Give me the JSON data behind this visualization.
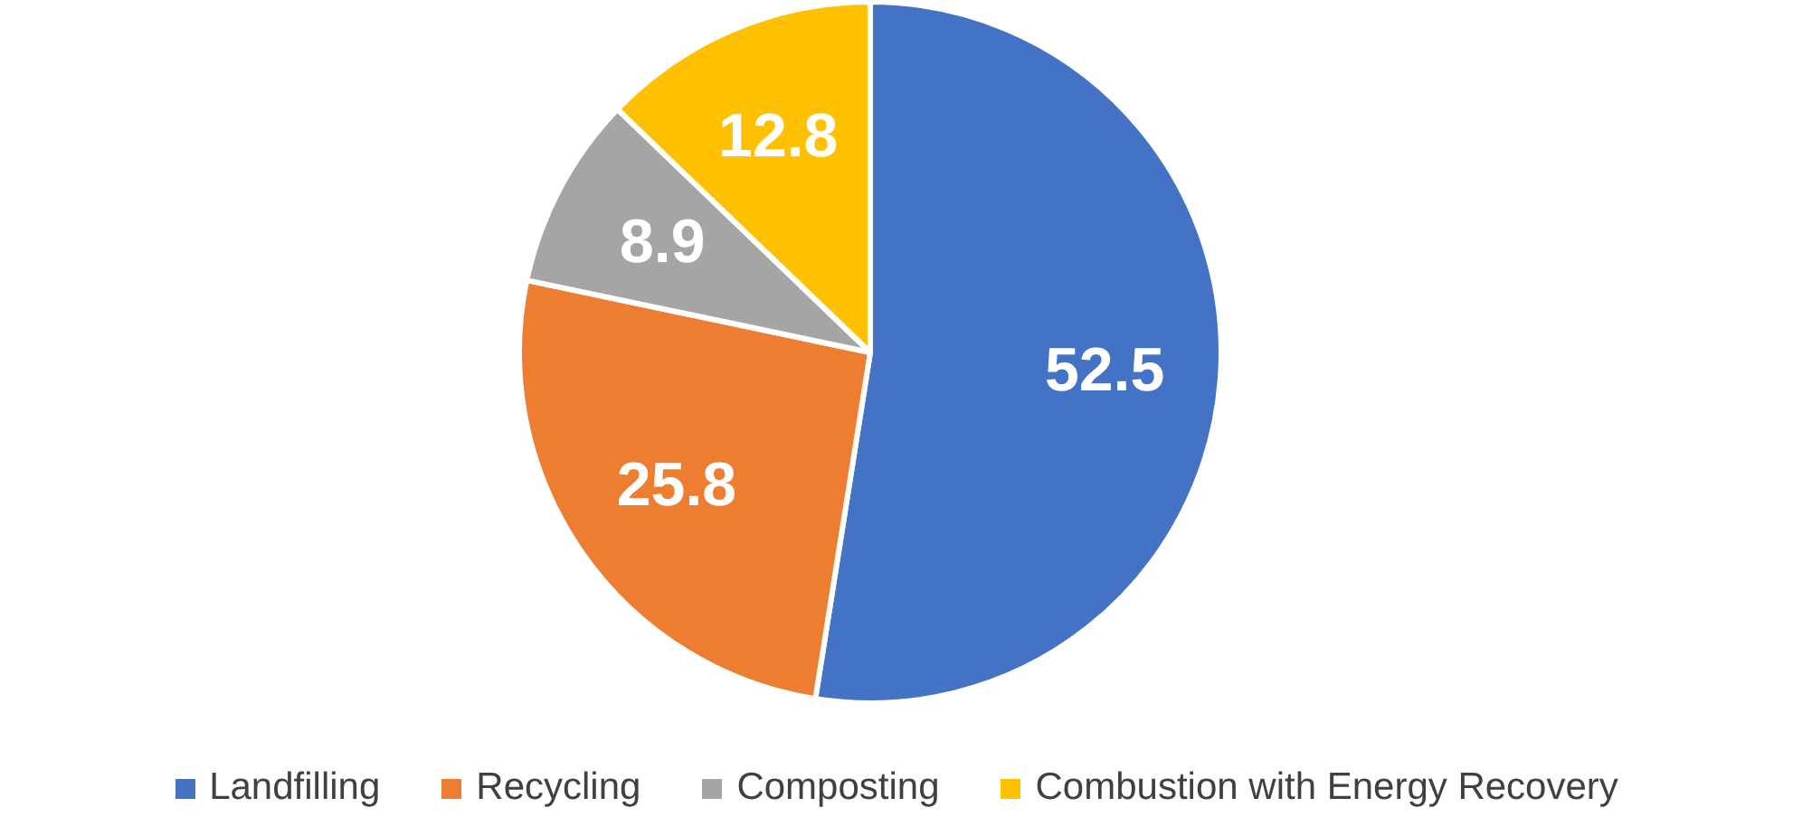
{
  "chart_data": {
    "type": "pie",
    "categories": [
      "Landfilling",
      "Recycling",
      "Composting",
      "Combustion with Energy Recovery"
    ],
    "values": [
      52.5,
      25.8,
      8.9,
      12.8
    ],
    "colors": [
      "#4472c4",
      "#ed7d31",
      "#a5a5a5",
      "#ffc000"
    ],
    "data_labels": true,
    "legend": "bottom"
  }
}
